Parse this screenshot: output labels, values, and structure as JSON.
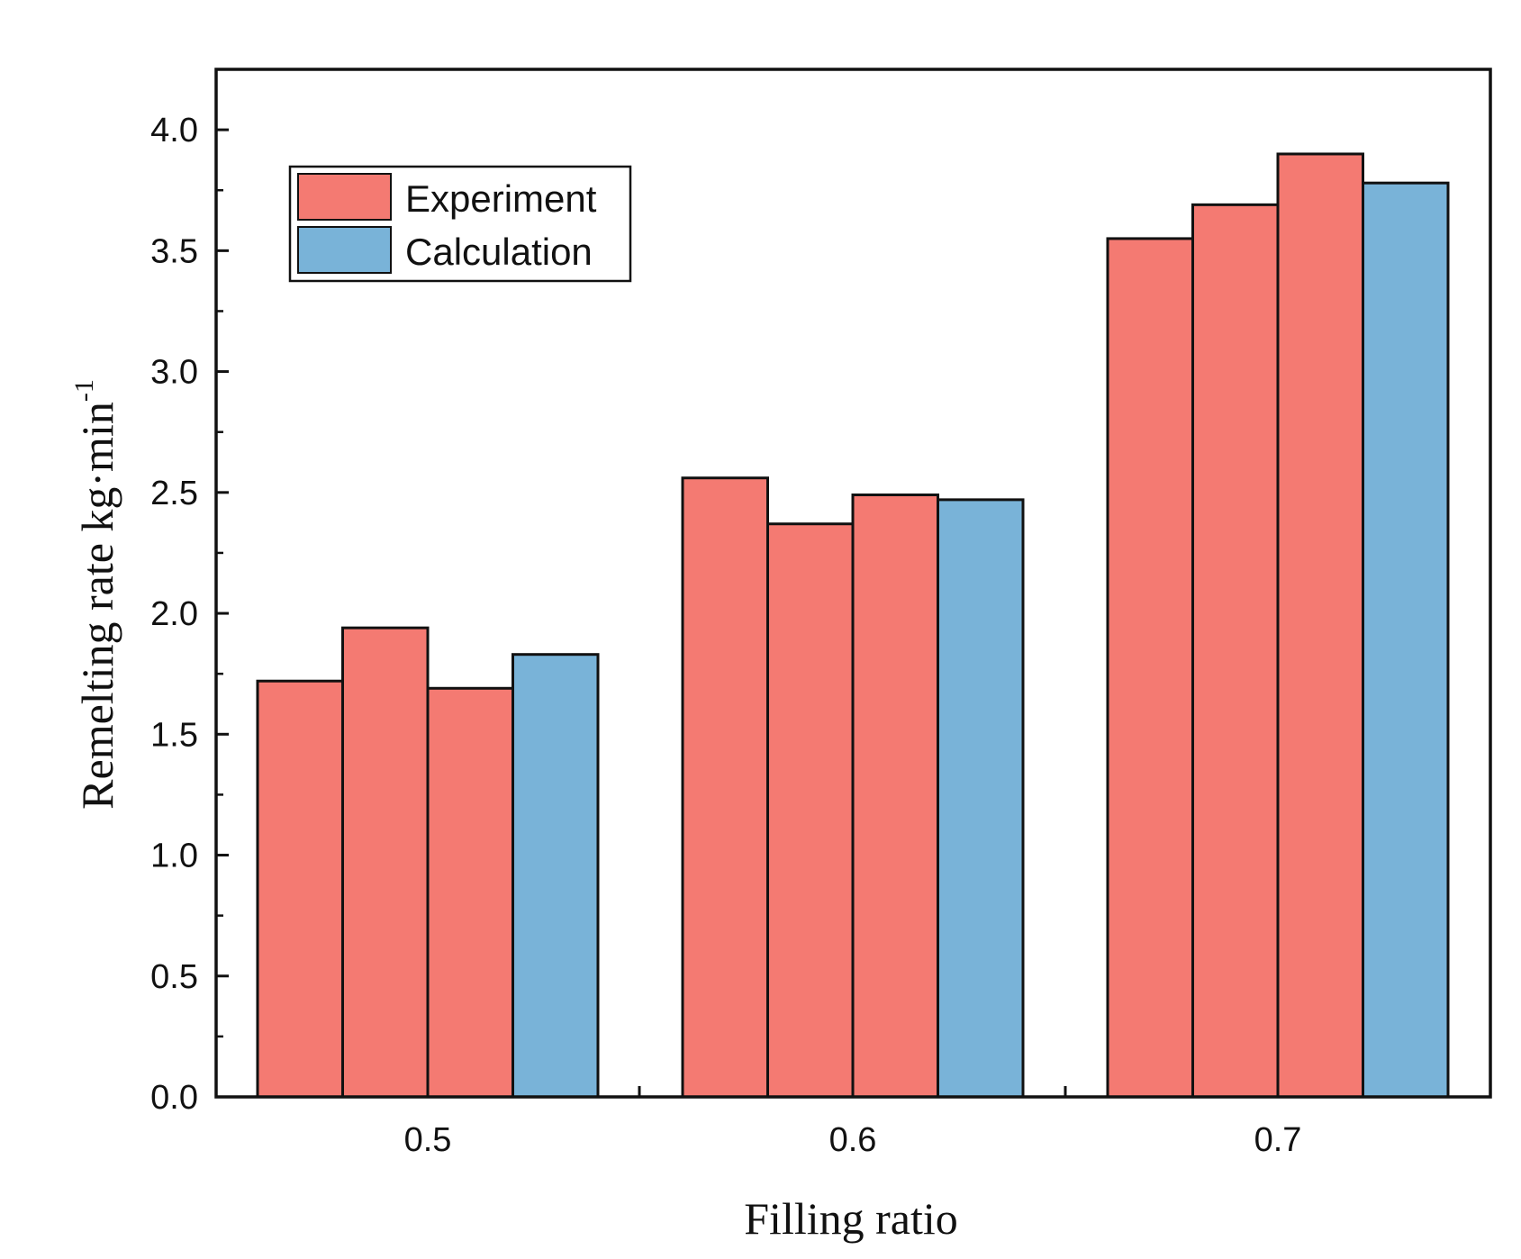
{
  "chart_data": {
    "type": "bar",
    "title": "",
    "xlabel": "Filling ratio",
    "ylabel": "Remelting rate kg·min",
    "ylabel_superscript": "-1",
    "ylim": [
      0,
      4.25
    ],
    "yticks": [
      "0.0",
      "0.5",
      "1.0",
      "1.5",
      "2.0",
      "2.5",
      "3.0",
      "3.5",
      "4.0"
    ],
    "categories": [
      "0.5",
      "0.6",
      "0.7"
    ],
    "groups": [
      {
        "category": "0.5",
        "bars": [
          {
            "series": "Experiment",
            "value": 1.72
          },
          {
            "series": "Experiment",
            "value": 1.94
          },
          {
            "series": "Experiment",
            "value": 1.69
          },
          {
            "series": "Calculation",
            "value": 1.83
          }
        ]
      },
      {
        "category": "0.6",
        "bars": [
          {
            "series": "Experiment",
            "value": 2.56
          },
          {
            "series": "Experiment",
            "value": 2.37
          },
          {
            "series": "Experiment",
            "value": 2.49
          },
          {
            "series": "Calculation",
            "value": 2.47
          }
        ]
      },
      {
        "category": "0.7",
        "bars": [
          {
            "series": "Experiment",
            "value": 3.55
          },
          {
            "series": "Experiment",
            "value": 3.69
          },
          {
            "series": "Experiment",
            "value": 3.9
          },
          {
            "series": "Calculation",
            "value": 3.78
          }
        ]
      }
    ],
    "legend": {
      "position": "top-left",
      "entries": [
        {
          "label": "Experiment",
          "color": "#f47a72"
        },
        {
          "label": "Calculation",
          "color": "#79b3d8"
        }
      ]
    },
    "grid": false
  }
}
